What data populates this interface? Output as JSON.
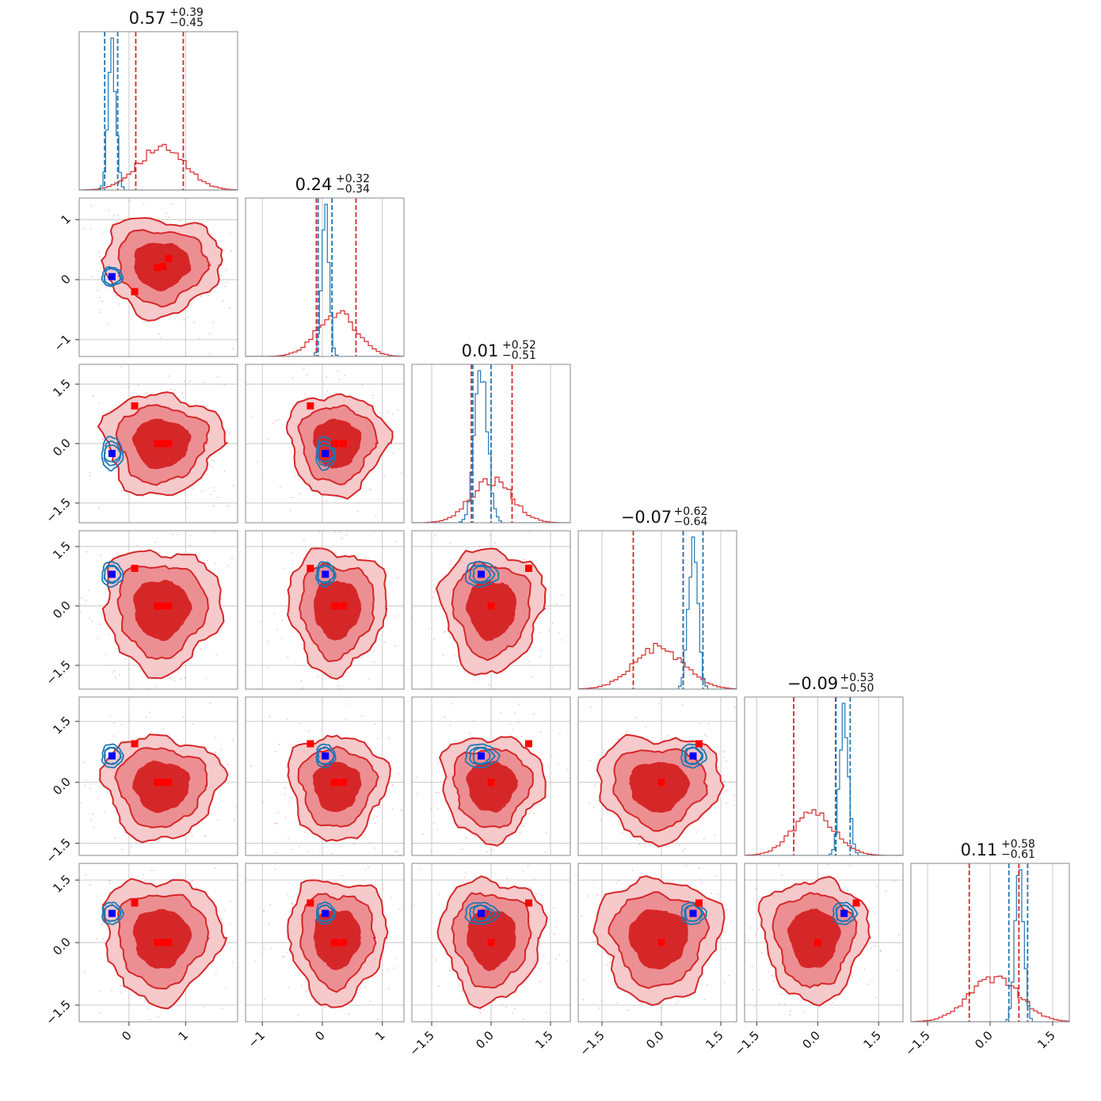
{
  "chart_data": {
    "type": "corner",
    "n_params": 6,
    "series": [
      {
        "name": "",
        "color": "#d62728"
      },
      {
        "name": "",
        "color": "#1f77b4"
      }
    ],
    "marker_colors": {
      "red_square": "#ff0000",
      "blue_square": "#0000ff"
    },
    "grid": true,
    "panel_titles": [
      {
        "median": "0.57",
        "plus": "+0.39",
        "minus": "−0.45"
      },
      {
        "median": "0.24",
        "plus": "+0.32",
        "minus": "−0.34"
      },
      {
        "median": "0.01",
        "plus": "+0.52",
        "minus": "−0.51"
      },
      {
        "median": "−0.07",
        "plus": "+0.62",
        "minus": "−0.64"
      },
      {
        "median": "−0.09",
        "plus": "+0.53",
        "minus": "−0.50"
      },
      {
        "median": "0.11",
        "plus": "+0.58",
        "minus": "−0.61"
      }
    ],
    "axes": [
      {
        "range": [
          -0.88,
          1.92
        ],
        "ticks": [
          0,
          1
        ],
        "tick_labels": [
          "0",
          "1"
        ]
      },
      {
        "range": [
          -1.28,
          1.36
        ],
        "ticks": [
          -1,
          0,
          1
        ],
        "tick_labels": [
          "−1",
          "0",
          "1"
        ]
      },
      {
        "range": [
          -2.0,
          2.0
        ],
        "ticks": [
          -1.5,
          0.0,
          1.5
        ],
        "tick_labels": [
          "−1.5",
          "0.0",
          "1.5"
        ]
      },
      {
        "range": [
          -2.1,
          1.9
        ],
        "ticks": [
          -1.5,
          0.0,
          1.5
        ],
        "tick_labels": [
          "−1.5",
          "0.0",
          "1.5"
        ]
      },
      {
        "range": [
          -1.8,
          2.1
        ],
        "ticks": [
          -1.5,
          0.0,
          1.5
        ],
        "tick_labels": [
          "−1.5",
          "0.0",
          "1.5"
        ]
      },
      {
        "range": [
          -1.9,
          1.9
        ],
        "ticks": [
          -1.5,
          0.0,
          1.5
        ],
        "tick_labels": [
          "−1.5",
          "0.0",
          "1.5"
        ]
      }
    ],
    "red_distribution": {
      "means": [
        0.57,
        0.24,
        0.01,
        -0.07,
        -0.09,
        0.11
      ],
      "sd": [
        0.42,
        0.33,
        0.52,
        0.63,
        0.52,
        0.6
      ]
    },
    "blue_distribution": {
      "means": [
        -0.3,
        0.05,
        -0.25,
        0.8,
        0.65,
        0.7
      ],
      "sd": [
        0.07,
        0.06,
        0.16,
        0.12,
        0.11,
        0.1
      ]
    },
    "quantiles_red": [
      [
        0.12,
        0.96
      ],
      [
        -0.1,
        0.56
      ],
      [
        -0.5,
        0.53
      ],
      [
        -0.71,
        0.55
      ],
      [
        -0.59,
        0.44
      ],
      [
        -0.5,
        0.69
      ]
    ],
    "quantiles_blue": [
      [
        -0.43,
        -0.2
      ],
      [
        -0.07,
        0.16
      ],
      [
        -0.46,
        0.0
      ],
      [
        0.55,
        1.05
      ],
      [
        0.45,
        0.8
      ],
      [
        0.45,
        0.9
      ]
    ],
    "truth_blue": [
      -0.3,
      0.05,
      -0.25,
      0.8,
      0.65,
      0.7
    ],
    "truth_red": [
      {
        "x": 0.1,
        "y": -0.2,
        "z": 0.95
      },
      {
        "x": 0.5,
        "y": 0.2,
        "z": 0.0
      },
      {
        "x": 0.6,
        "y": 0.22,
        "z": 0.0
      },
      {
        "x": 0.7,
        "y": 0.35,
        "z": 0.0
      }
    ]
  }
}
